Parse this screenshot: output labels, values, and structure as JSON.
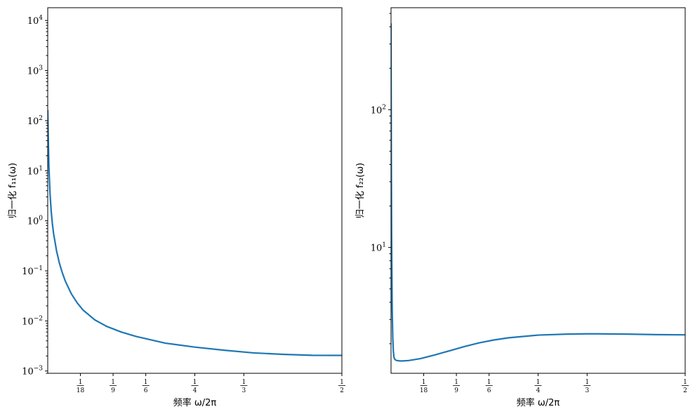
{
  "chart_data": [
    {
      "type": "line",
      "ylabel": "归一化 f₁₁(ω)",
      "xlabel": "频率 ω/2π",
      "yscale": "log",
      "xlim": [
        0.0,
        0.5
      ],
      "ylim": [
        0.0009,
        18000
      ],
      "x_ticks": [
        {
          "value": 0.05556,
          "num": "1",
          "den": "18"
        },
        {
          "value": 0.11111,
          "num": "1",
          "den": "9"
        },
        {
          "value": 0.16667,
          "num": "1",
          "den": "6"
        },
        {
          "value": 0.25,
          "num": "1",
          "den": "4"
        },
        {
          "value": 0.33333,
          "num": "1",
          "den": "3"
        },
        {
          "value": 0.5,
          "num": "1",
          "den": "2"
        }
      ],
      "y_ticks": [
        {
          "value": 0.001,
          "base": "10",
          "exp": "−3"
        },
        {
          "value": 0.01,
          "base": "10",
          "exp": "−2"
        },
        {
          "value": 0.1,
          "base": "10",
          "exp": "−1"
        },
        {
          "value": 1,
          "base": "10",
          "exp": "0"
        },
        {
          "value": 10,
          "base": "10",
          "exp": "1"
        },
        {
          "value": 100,
          "base": "10",
          "exp": "2"
        },
        {
          "value": 1000,
          "base": "10",
          "exp": "3"
        },
        {
          "value": 10000,
          "base": "10",
          "exp": "4"
        }
      ],
      "grid": false,
      "series": [
        {
          "color": "#1f77b4",
          "x": [
            0.0,
            0.001,
            0.002,
            0.004,
            0.006,
            0.008,
            0.01,
            0.015,
            0.02,
            0.025,
            0.03,
            0.04,
            0.05,
            0.06,
            0.08,
            0.1,
            0.125,
            0.15,
            0.2,
            0.25,
            0.3,
            0.35,
            0.4,
            0.45,
            0.5
          ],
          "y": [
            160,
            40,
            12,
            3.3,
            1.5,
            0.85,
            0.55,
            0.25,
            0.14,
            0.09,
            0.062,
            0.035,
            0.023,
            0.0165,
            0.0105,
            0.0078,
            0.006,
            0.0049,
            0.0036,
            0.003,
            0.0026,
            0.0023,
            0.00215,
            0.00206,
            0.00205
          ]
        }
      ]
    },
    {
      "type": "line",
      "ylabel": "归一化 f₂₂(ω)",
      "xlabel": "频率 ω/2π",
      "yscale": "log",
      "xlim": [
        0.0,
        0.5
      ],
      "ylim": [
        1.22,
        550
      ],
      "x_ticks": [
        {
          "value": 0.05556,
          "num": "1",
          "den": "18"
        },
        {
          "value": 0.11111,
          "num": "1",
          "den": "9"
        },
        {
          "value": 0.16667,
          "num": "1",
          "den": "6"
        },
        {
          "value": 0.25,
          "num": "1",
          "den": "4"
        },
        {
          "value": 0.33333,
          "num": "1",
          "den": "3"
        },
        {
          "value": 0.5,
          "num": "1",
          "den": "2"
        }
      ],
      "y_ticks": [
        {
          "value": 10,
          "base": "10",
          "exp": "1"
        },
        {
          "value": 100,
          "base": "10",
          "exp": "2"
        }
      ],
      "grid": false,
      "series": [
        {
          "color": "#1f77b4",
          "x": [
            0.0,
            0.0005,
            0.001,
            0.002,
            0.003,
            0.004,
            0.005,
            0.006,
            0.008,
            0.01,
            0.015,
            0.02,
            0.03,
            0.05,
            0.075,
            0.1,
            0.125,
            0.15,
            0.175,
            0.2,
            0.25,
            0.3,
            0.333,
            0.35,
            0.4,
            0.45,
            0.5
          ],
          "y": [
            420,
            45,
            12,
            3.5,
            2.2,
            1.75,
            1.6,
            1.55,
            1.52,
            1.51,
            1.5,
            1.5,
            1.51,
            1.56,
            1.66,
            1.78,
            1.91,
            2.03,
            2.13,
            2.21,
            2.31,
            2.35,
            2.36,
            2.36,
            2.35,
            2.33,
            2.32
          ]
        }
      ]
    }
  ]
}
